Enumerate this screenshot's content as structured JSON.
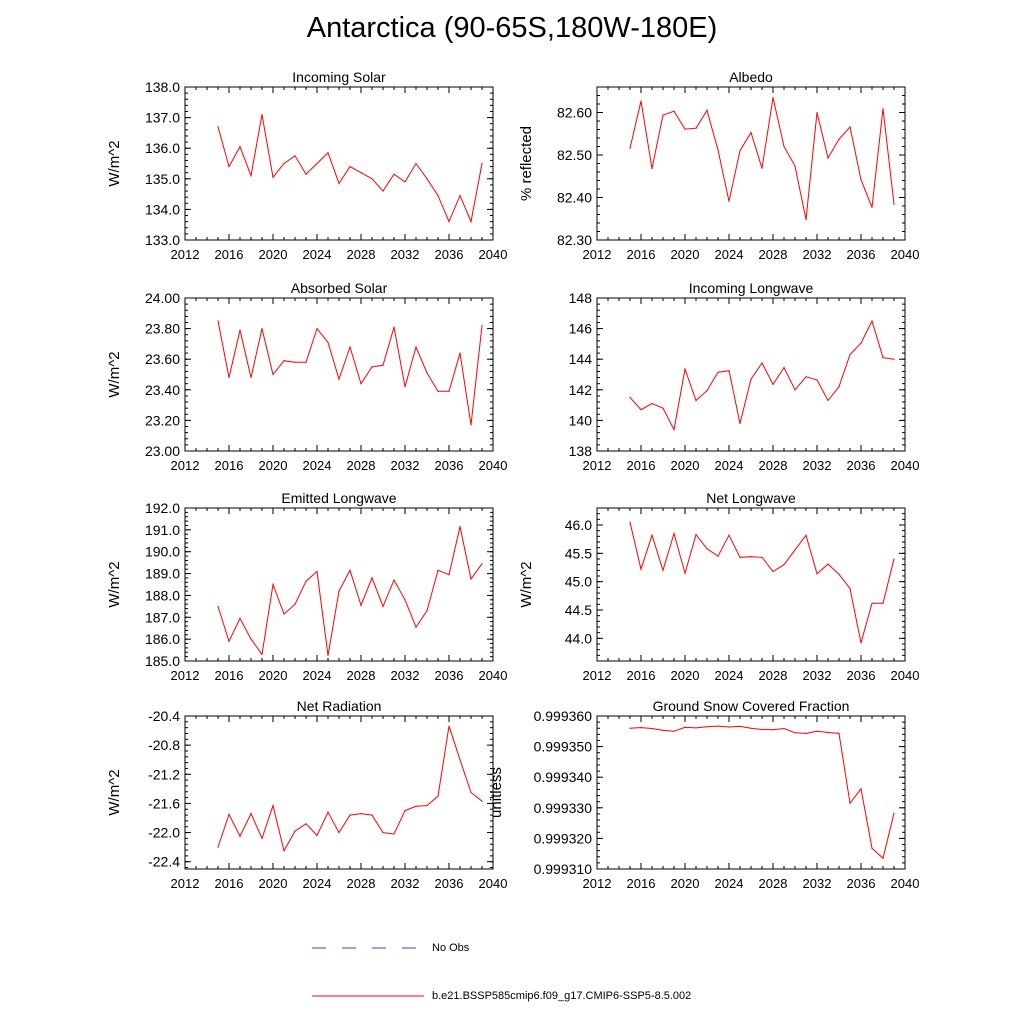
{
  "title": "Antarctica (90-65S,180W-180E)",
  "legend": {
    "obs_label": "No Obs",
    "obs_color": "#3b3bd0",
    "model_label": "b.e21.BSSP585cmip6.f09_g17.CMIP6-SSP5-8.5.002",
    "model_color": "#ff0000"
  },
  "chart_data": [
    {
      "type": "line",
      "title": "Incoming Solar",
      "ylabel": "W/m^2",
      "xlim": [
        2012,
        2040
      ],
      "ylim": [
        133.0,
        138.0
      ],
      "yticks": [
        "133.0",
        "134.0",
        "135.0",
        "136.0",
        "137.0",
        "138.0"
      ],
      "xticks": [
        "2012",
        "2016",
        "2020",
        "2024",
        "2028",
        "2032",
        "2036",
        "2040"
      ],
      "x": [
        2015,
        2016,
        2017,
        2018,
        2019,
        2020,
        2021,
        2022,
        2023,
        2024,
        2025,
        2026,
        2027,
        2028,
        2029,
        2030,
        2031,
        2032,
        2033,
        2034,
        2035,
        2036,
        2037,
        2038,
        2039
      ],
      "values": [
        136.7,
        135.4,
        136.05,
        135.1,
        137.1,
        135.05,
        135.5,
        135.75,
        135.15,
        135.5,
        135.85,
        134.85,
        135.4,
        135.2,
        135.0,
        134.6,
        135.15,
        134.9,
        135.5,
        135.0,
        134.45,
        133.6,
        134.45,
        133.6,
        135.5
      ]
    },
    {
      "type": "line",
      "title": "Albedo",
      "ylabel": "% reflected",
      "xlim": [
        2012,
        2040
      ],
      "ylim": [
        82.3,
        82.66
      ],
      "yticks": [
        "82.30",
        "82.40",
        "82.50",
        "82.60"
      ],
      "xticks": [
        "2012",
        "2016",
        "2020",
        "2024",
        "2028",
        "2032",
        "2036",
        "2040"
      ],
      "x": [
        2015,
        2016,
        2017,
        2018,
        2019,
        2020,
        2021,
        2022,
        2023,
        2024,
        2025,
        2026,
        2027,
        2028,
        2029,
        2030,
        2031,
        2032,
        2033,
        2034,
        2035,
        2036,
        2037,
        2038,
        2039
      ],
      "values": [
        82.516,
        82.627,
        82.468,
        82.594,
        82.603,
        82.561,
        82.563,
        82.605,
        82.512,
        82.391,
        82.51,
        82.553,
        82.469,
        82.635,
        82.52,
        82.474,
        82.348,
        82.6,
        82.493,
        82.537,
        82.566,
        82.442,
        82.377,
        82.609,
        82.384
      ]
    },
    {
      "type": "line",
      "title": "Absorbed Solar",
      "ylabel": "W/m^2",
      "xlim": [
        2012,
        2040
      ],
      "ylim": [
        23.0,
        24.0
      ],
      "yticks": [
        "23.00",
        "23.20",
        "23.40",
        "23.60",
        "23.80",
        "24.00"
      ],
      "xticks": [
        "2012",
        "2016",
        "2020",
        "2024",
        "2028",
        "2032",
        "2036",
        "2040"
      ],
      "x": [
        2015,
        2016,
        2017,
        2018,
        2019,
        2020,
        2021,
        2022,
        2023,
        2024,
        2025,
        2026,
        2027,
        2028,
        2029,
        2030,
        2031,
        2032,
        2033,
        2034,
        2035,
        2036,
        2037,
        2038,
        2039
      ],
      "values": [
        23.85,
        23.48,
        23.79,
        23.48,
        23.8,
        23.5,
        23.59,
        23.58,
        23.58,
        23.8,
        23.71,
        23.47,
        23.68,
        23.44,
        23.55,
        23.56,
        23.81,
        23.42,
        23.68,
        23.51,
        23.39,
        23.39,
        23.64,
        23.17,
        23.82
      ]
    },
    {
      "type": "line",
      "title": "Incoming Longwave",
      "ylabel": "",
      "xlim": [
        2012,
        2040
      ],
      "ylim": [
        138,
        148
      ],
      "yticks": [
        "138",
        "140",
        "142",
        "144",
        "146",
        "148"
      ],
      "xticks": [
        "2012",
        "2016",
        "2020",
        "2024",
        "2028",
        "2032",
        "2036",
        "2040"
      ],
      "x": [
        2015,
        2016,
        2017,
        2018,
        2019,
        2020,
        2021,
        2022,
        2023,
        2024,
        2025,
        2026,
        2027,
        2028,
        2029,
        2030,
        2031,
        2032,
        2033,
        2034,
        2035,
        2036,
        2037,
        2038,
        2039
      ],
      "values": [
        141.5,
        140.7,
        141.1,
        140.8,
        139.4,
        143.35,
        141.3,
        141.95,
        143.15,
        143.25,
        139.8,
        142.7,
        143.75,
        142.35,
        143.45,
        142.0,
        142.85,
        142.65,
        141.3,
        142.2,
        144.3,
        145.05,
        146.5,
        144.1,
        144.0
      ]
    },
    {
      "type": "line",
      "title": "Emitted Longwave",
      "ylabel": "W/m^2",
      "xlim": [
        2012,
        2040
      ],
      "ylim": [
        185.0,
        192.0
      ],
      "yticks": [
        "185.0",
        "186.0",
        "187.0",
        "188.0",
        "189.0",
        "190.0",
        "191.0",
        "192.0"
      ],
      "xticks": [
        "2012",
        "2016",
        "2020",
        "2024",
        "2028",
        "2032",
        "2036",
        "2040"
      ],
      "x": [
        2015,
        2016,
        2017,
        2018,
        2019,
        2020,
        2021,
        2022,
        2023,
        2024,
        2025,
        2026,
        2027,
        2028,
        2029,
        2030,
        2031,
        2032,
        2033,
        2034,
        2035,
        2036,
        2037,
        2038,
        2039
      ],
      "values": [
        187.5,
        185.9,
        186.95,
        186.0,
        185.3,
        188.5,
        187.15,
        187.6,
        188.65,
        189.1,
        185.25,
        188.2,
        189.15,
        187.55,
        188.8,
        187.5,
        188.7,
        187.8,
        186.55,
        187.3,
        189.15,
        188.95,
        191.15,
        188.75,
        189.45
      ]
    },
    {
      "type": "line",
      "title": "Net Longwave",
      "ylabel": "W/m^2",
      "xlim": [
        2012,
        2040
      ],
      "ylim": [
        43.6,
        46.3
      ],
      "yticks": [
        "44.0",
        "44.5",
        "45.0",
        "45.5",
        "46.0"
      ],
      "xticks": [
        "2012",
        "2016",
        "2020",
        "2024",
        "2028",
        "2032",
        "2036",
        "2040"
      ],
      "x": [
        2015,
        2016,
        2017,
        2018,
        2019,
        2020,
        2021,
        2022,
        2023,
        2024,
        2025,
        2026,
        2027,
        2028,
        2029,
        2030,
        2031,
        2032,
        2033,
        2034,
        2035,
        2036,
        2037,
        2038,
        2039
      ],
      "values": [
        46.05,
        45.22,
        45.82,
        45.2,
        45.85,
        45.15,
        45.83,
        45.58,
        45.45,
        45.82,
        45.43,
        45.44,
        45.43,
        45.18,
        45.3,
        45.56,
        45.82,
        45.14,
        45.31,
        45.13,
        44.88,
        43.92,
        44.62,
        44.62,
        45.4
      ]
    },
    {
      "type": "line",
      "title": "Net Radiation",
      "ylabel": "W/m^2",
      "xlim": [
        2012,
        2040
      ],
      "ylim": [
        -22.5,
        -20.4
      ],
      "yticks": [
        "-22.4",
        "-22.0",
        "-21.6",
        "-21.2",
        "-20.8",
        "-20.4"
      ],
      "xticks": [
        "2012",
        "2016",
        "2020",
        "2024",
        "2028",
        "2032",
        "2036",
        "2040"
      ],
      "x": [
        2015,
        2016,
        2017,
        2018,
        2019,
        2020,
        2021,
        2022,
        2023,
        2024,
        2025,
        2026,
        2027,
        2028,
        2029,
        2030,
        2031,
        2032,
        2033,
        2034,
        2035,
        2036,
        2037,
        2038,
        2039
      ],
      "values": [
        -22.2,
        -21.75,
        -22.05,
        -21.74,
        -22.08,
        -21.63,
        -22.25,
        -21.98,
        -21.88,
        -22.04,
        -21.72,
        -22.0,
        -21.76,
        -21.74,
        -21.76,
        -22.0,
        -22.02,
        -21.7,
        -21.64,
        -21.63,
        -21.5,
        -20.54,
        -21.0,
        -21.45,
        -21.57
      ]
    },
    {
      "type": "line",
      "title": "Ground Snow Covered Fraction",
      "ylabel": "unitless",
      "xlim": [
        2012,
        2040
      ],
      "ylim": [
        0.99931,
        0.99936
      ],
      "yticks": [
        "0.999310",
        "0.999320",
        "0.999330",
        "0.999340",
        "0.999350",
        "0.999360"
      ],
      "xticks": [
        "2012",
        "2016",
        "2020",
        "2024",
        "2028",
        "2032",
        "2036",
        "2040"
      ],
      "x": [
        2015,
        2016,
        2017,
        2018,
        2019,
        2020,
        2021,
        2022,
        2023,
        2024,
        2025,
        2026,
        2027,
        2028,
        2029,
        2030,
        2031,
        2032,
        2033,
        2034,
        2035,
        2036,
        2037,
        2038,
        2039
      ],
      "values": [
        0.999356,
        0.9993562,
        0.9993559,
        0.9993553,
        0.999355,
        0.9993563,
        0.9993561,
        0.9993565,
        0.9993567,
        0.9993564,
        0.9993566,
        0.999356,
        0.9993556,
        0.9993555,
        0.9993559,
        0.9993545,
        0.9993543,
        0.999355,
        0.9993546,
        0.9993543,
        0.9993315,
        0.9993362,
        0.9993168,
        0.9993135,
        0.9993282
      ]
    }
  ]
}
